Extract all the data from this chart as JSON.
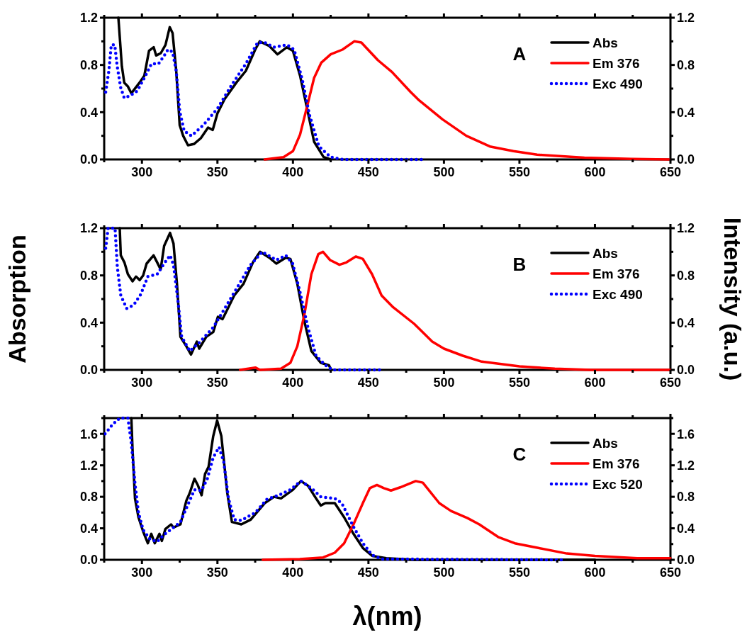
{
  "chart_data": [
    {
      "type": "line",
      "annotations": [
        "A"
      ],
      "legend": "top right",
      "xlim": [
        275,
        650
      ],
      "xticks": [
        {
          "value": 275,
          "label": null
        },
        300,
        {
          "value": 325,
          "label": null
        },
        350,
        {
          "value": 375,
          "label": null
        },
        400,
        {
          "value": 425,
          "label": null
        },
        450,
        {
          "value": 475,
          "label": null
        },
        500,
        {
          "value": 525,
          "label": null
        },
        550,
        {
          "value": 575,
          "label": null
        },
        600,
        {
          "value": 625,
          "label": null
        },
        650
      ],
      "ylim": [
        0,
        1.2
      ],
      "yticks": [
        {
          "value": 0,
          "label": "0.0"
        },
        {
          "value": 0.2,
          "label": null
        },
        0.4,
        {
          "value": 0.6,
          "label": null
        },
        0.8,
        {
          "value": 1.0,
          "label": null
        },
        1.2
      ],
      "y2lim": [
        0,
        1.2
      ],
      "y2ticks": [
        {
          "value": 0,
          "label": "0.0"
        },
        {
          "value": 0.2,
          "label": null
        },
        0.4,
        {
          "value": 0.6,
          "label": null
        },
        0.8,
        {
          "value": 1.0,
          "label": null
        },
        1.2
      ],
      "series": [
        {
          "name": "Abs",
          "color": "#000000",
          "line_style": "solid",
          "x": [
            284.4,
            286.7,
            288.3,
            290.6,
            293,
            298.4,
            301.6,
            304.7,
            307.8,
            309.4,
            312.5,
            315.6,
            318.4,
            320.3,
            322.7,
            325,
            327.3,
            330.5,
            334.4,
            339,
            343.8,
            346.9,
            350,
            354.7,
            362.5,
            368.8,
            375,
            378,
            384.4,
            389.8,
            396,
            400,
            404.7,
            409.4,
            414,
            420.3,
            425
          ],
          "values": [
            1.2,
            0.79,
            0.65,
            0.62,
            0.56,
            0.65,
            0.71,
            0.92,
            0.95,
            0.88,
            0.9,
            0.97,
            1.12,
            1.07,
            0.75,
            0.29,
            0.2,
            0.12,
            0.13,
            0.18,
            0.27,
            0.25,
            0.39,
            0.51,
            0.65,
            0.75,
            0.93,
            1.0,
            0.96,
            0.89,
            0.95,
            0.92,
            0.71,
            0.43,
            0.15,
            0.02,
            0
          ]
        },
        {
          "name": "Em 376",
          "color": "#ff0000",
          "line_style": "solid",
          "x": [
            381.3,
            393.8,
            400,
            404.7,
            409.4,
            414,
            418.8,
            425,
            432.8,
            440.6,
            445.3,
            456.3,
            465.6,
            478,
            483.6,
            499,
            514.8,
            530.4,
            546,
            561.7,
            593,
            624,
            649
          ],
          "values": [
            0,
            0.02,
            0.07,
            0.21,
            0.45,
            0.69,
            0.82,
            0.89,
            0.93,
            1.0,
            0.99,
            0.84,
            0.74,
            0.57,
            0.5,
            0.34,
            0.2,
            0.11,
            0.07,
            0.04,
            0.015,
            0.005,
            0
          ]
        },
        {
          "name": "Exc 490",
          "color": "#0000ff",
          "line_style": "dotted",
          "x": [
            276,
            278.1,
            279.7,
            282,
            283.6,
            285.9,
            288.3,
            292.2,
            296.9,
            301.6,
            306.3,
            311,
            314.8,
            317.2,
            320.3,
            322.7,
            325,
            328,
            332.8,
            340.6,
            350,
            359.4,
            368.8,
            376.6,
            381.3,
            387.5,
            396.1,
            400.8,
            406.3,
            410.9,
            417.2,
            425,
            432.8,
            486
          ],
          "values": [
            0.57,
            0.75,
            0.97,
            0.97,
            0.79,
            0.61,
            0.52,
            0.54,
            0.58,
            0.69,
            0.81,
            0.81,
            0.88,
            0.93,
            0.91,
            0.75,
            0.41,
            0.24,
            0.2,
            0.29,
            0.43,
            0.63,
            0.81,
            0.99,
            0.99,
            0.95,
            0.97,
            0.93,
            0.67,
            0.38,
            0.11,
            0.02,
            0,
            0
          ]
        }
      ]
    },
    {
      "type": "line",
      "annotations": [
        "B"
      ],
      "legend": "top right",
      "ylabel": "Absorption",
      "y2label": "Intensity (a.u.)",
      "xlim": [
        275,
        650
      ],
      "xticks": [
        {
          "value": 275,
          "label": null
        },
        300,
        {
          "value": 325,
          "label": null
        },
        350,
        {
          "value": 375,
          "label": null
        },
        400,
        {
          "value": 425,
          "label": null
        },
        450,
        {
          "value": 475,
          "label": null
        },
        500,
        {
          "value": 525,
          "label": null
        },
        550,
        {
          "value": 575,
          "label": null
        },
        600,
        {
          "value": 625,
          "label": null
        },
        650
      ],
      "ylim": [
        0,
        1.2
      ],
      "yticks": [
        {
          "value": 0,
          "label": "0.0"
        },
        {
          "value": 0.2,
          "label": null
        },
        0.4,
        {
          "value": 0.6,
          "label": null
        },
        0.8,
        {
          "value": 1.0,
          "label": null
        },
        1.2
      ],
      "y2lim": [
        0,
        1.2
      ],
      "y2ticks": [
        {
          "value": 0,
          "label": "0.0"
        },
        {
          "value": 0.2,
          "label": null
        },
        0.4,
        {
          "value": 0.6,
          "label": null
        },
        0.8,
        {
          "value": 1.0,
          "label": null
        },
        1.2
      ],
      "series": [
        {
          "name": "Abs",
          "color": "#000000",
          "line_style": "solid",
          "x": [
            285.3,
            286,
            288.4,
            290.7,
            293.8,
            296.1,
            298.5,
            300.8,
            303.1,
            307.7,
            310.1,
            312.4,
            314.7,
            318.6,
            320.9,
            323.2,
            325.5,
            329.4,
            332.5,
            336.4,
            337.9,
            342.6,
            347.2,
            350.3,
            353.4,
            356.5,
            361.1,
            367.3,
            373.5,
            378.2,
            384.4,
            389,
            395.2,
            398.3,
            402.9,
            407.6,
            412.2,
            418.4,
            423.8,
            425.4
          ],
          "values": [
            1.2,
            0.97,
            0.91,
            0.81,
            0.75,
            0.79,
            0.76,
            0.8,
            0.9,
            0.97,
            0.91,
            0.85,
            1.05,
            1.16,
            1.07,
            0.73,
            0.28,
            0.2,
            0.13,
            0.24,
            0.18,
            0.28,
            0.32,
            0.45,
            0.43,
            0.51,
            0.63,
            0.73,
            0.91,
            1.0,
            0.95,
            0.9,
            0.95,
            0.94,
            0.73,
            0.41,
            0.16,
            0.06,
            0.04,
            0
          ]
        },
        {
          "name": "Em 376",
          "color": "#ff0000",
          "line_style": "solid",
          "x": [
            365,
            375.1,
            378.2,
            392.1,
            398.3,
            402.9,
            407.6,
            412.2,
            416.8,
            419.9,
            424.6,
            430.8,
            435.4,
            441.6,
            446.3,
            452.4,
            458.7,
            466.4,
            480.3,
            492.2,
            500,
            512.5,
            525,
            550,
            573.4,
            596.9,
            650
          ],
          "values": [
            0,
            0.02,
            0,
            0.01,
            0.06,
            0.2,
            0.47,
            0.81,
            0.98,
            1.0,
            0.93,
            0.89,
            0.91,
            0.96,
            0.94,
            0.81,
            0.63,
            0.53,
            0.39,
            0.24,
            0.18,
            0.12,
            0.07,
            0.03,
            0.01,
            0,
            0
          ]
        },
        {
          "name": "Exc 490",
          "color": "#0000ff",
          "line_style": "dotted",
          "x": [
            276,
            277.6,
            282.2,
            283.7,
            286,
            289.9,
            294.6,
            299.2,
            303.9,
            310.1,
            314.7,
            318.6,
            320.9,
            324,
            326.3,
            331.7,
            337.9,
            347.2,
            353.4,
            362.7,
            372,
            379.7,
            389,
            395.2,
            399.8,
            404.5,
            409.9,
            415.3,
            421.5,
            426.2,
            458.7
          ],
          "values": [
            1.03,
            1.2,
            1.2,
            0.87,
            0.63,
            0.52,
            0.55,
            0.64,
            0.79,
            0.81,
            0.9,
            0.97,
            0.89,
            0.57,
            0.28,
            0.16,
            0.23,
            0.36,
            0.49,
            0.69,
            0.89,
            1.0,
            0.93,
            0.97,
            0.9,
            0.67,
            0.36,
            0.12,
            0.04,
            0,
            0
          ]
        }
      ]
    },
    {
      "type": "line",
      "annotations": [
        "C"
      ],
      "legend": "top right",
      "xlabel": "λ(nm)",
      "xlim": [
        275,
        650
      ],
      "xticks": [
        {
          "value": 275,
          "label": null
        },
        300,
        {
          "value": 325,
          "label": null
        },
        350,
        {
          "value": 375,
          "label": null
        },
        400,
        {
          "value": 425,
          "label": null
        },
        450,
        {
          "value": 475,
          "label": null
        },
        500,
        {
          "value": 525,
          "label": null
        },
        550,
        {
          "value": 575,
          "label": null
        },
        600,
        {
          "value": 625,
          "label": null
        },
        650
      ],
      "ylim": [
        0,
        1.8
      ],
      "yticks": [
        {
          "value": 0,
          "label": "0.0"
        },
        {
          "value": 0.2,
          "label": null
        },
        0.4,
        {
          "value": 0.6,
          "label": null
        },
        0.8,
        {
          "value": 1.0,
          "label": null
        },
        1.2,
        {
          "value": 1.4,
          "label": null
        },
        1.6,
        {
          "value": 1.8,
          "label": null
        }
      ],
      "y2lim": [
        0,
        1.8
      ],
      "y2ticks": [
        {
          "value": 0,
          "label": "0.0"
        },
        {
          "value": 0.2,
          "label": null
        },
        0.4,
        {
          "value": 0.6,
          "label": null
        },
        0.8,
        {
          "value": 1.0,
          "label": null
        },
        1.2,
        {
          "value": 1.4,
          "label": null
        },
        1.6,
        {
          "value": 1.8,
          "label": null
        }
      ],
      "series": [
        {
          "name": "Abs",
          "color": "#000000",
          "line_style": "solid",
          "x": [
            293,
            293.8,
            295.4,
            297.7,
            300.8,
            303.9,
            306.2,
            308.5,
            311.6,
            313.2,
            315.5,
            319.3,
            320.9,
            325.5,
            329.4,
            331.7,
            334.8,
            337.2,
            339.5,
            341.8,
            344.1,
            347.2,
            349.8,
            352.6,
            356.5,
            359.6,
            365.8,
            372,
            381.3,
            387.5,
            392.1,
            400,
            405.3,
            410,
            415.3,
            418.4,
            421.5,
            427.7,
            433.9,
            440.1,
            446.3,
            452.5,
            461.8,
            480.3,
            600
          ],
          "values": [
            1.8,
            1.39,
            0.78,
            0.54,
            0.36,
            0.21,
            0.33,
            0.21,
            0.33,
            0.24,
            0.39,
            0.45,
            0.41,
            0.45,
            0.75,
            0.85,
            1.03,
            0.94,
            0.82,
            1.09,
            1.18,
            1.57,
            1.77,
            1.57,
            0.85,
            0.48,
            0.45,
            0.51,
            0.72,
            0.8,
            0.78,
            0.89,
            1.0,
            0.94,
            0.78,
            0.69,
            0.72,
            0.72,
            0.54,
            0.33,
            0.15,
            0.05,
            0.02,
            0,
            0
          ]
        },
        {
          "name": "Em 376",
          "color": "#ff0000",
          "line_style": "solid",
          "x": [
            380,
            404.5,
            420,
            427.7,
            433.9,
            440.1,
            446.3,
            450.9,
            455.6,
            460.2,
            464.9,
            471,
            481.3,
            486,
            496.9,
            504.7,
            515.6,
            523.4,
            535.9,
            546.9,
            562.5,
            581.3,
            600,
            628,
            650
          ],
          "values": [
            0,
            0.01,
            0.03,
            0.09,
            0.21,
            0.45,
            0.72,
            0.91,
            0.95,
            0.91,
            0.88,
            0.92,
            1.0,
            0.98,
            0.72,
            0.62,
            0.53,
            0.45,
            0.29,
            0.21,
            0.15,
            0.08,
            0.05,
            0.02,
            0.02
          ]
        },
        {
          "name": "Exc 520",
          "color": "#0000ff",
          "line_style": "dotted",
          "x": [
            275.6,
            280.6,
            285.3,
            290.7,
            293,
            295.4,
            297.7,
            300.8,
            305.4,
            310.1,
            314.7,
            320.9,
            325.5,
            330.2,
            334.8,
            339.5,
            343.3,
            347.2,
            351.1,
            354.2,
            357.3,
            361.1,
            365.8,
            375.1,
            382.8,
            390.6,
            398.3,
            405.3,
            412.2,
            418.4,
            427.7,
            432.3,
            440.1,
            446.3,
            452.5,
            458.7,
            580
          ],
          "values": [
            1.6,
            1.72,
            1.8,
            1.8,
            1.48,
            0.97,
            0.6,
            0.38,
            0.26,
            0.23,
            0.32,
            0.41,
            0.48,
            0.69,
            0.89,
            0.88,
            1.03,
            1.3,
            1.43,
            1.24,
            0.78,
            0.51,
            0.5,
            0.6,
            0.77,
            0.82,
            0.89,
            1.0,
            0.91,
            0.8,
            0.78,
            0.72,
            0.42,
            0.21,
            0.06,
            0.01,
            0
          ]
        }
      ]
    }
  ]
}
